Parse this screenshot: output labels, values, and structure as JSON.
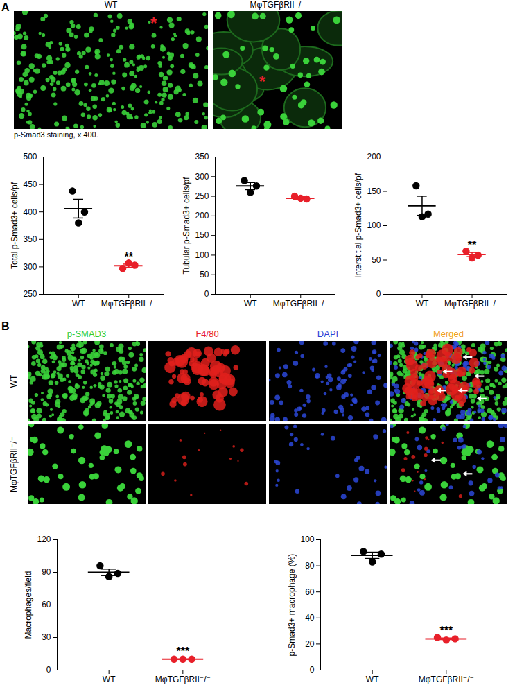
{
  "figure": {
    "panel_A": {
      "label": "A",
      "images": [
        "WT",
        "MφTGFβRII⁻/⁻"
      ],
      "marker": "*",
      "color": "#e8202a",
      "caption": "p-Smad3 staining, x 400."
    },
    "panel_B": {
      "label": "B",
      "rows": [
        "WT",
        "MφTGFβRII⁻/⁻"
      ],
      "channels": [
        {
          "name": "p-SMAD3",
          "color": "#33cc33"
        },
        {
          "name": "F4/80",
          "color": "#e8202a"
        },
        {
          "name": "DAPI",
          "color": "#2b3fd6"
        },
        {
          "name": "Merged",
          "color": "#f0a020"
        }
      ]
    }
  },
  "chart_data": [
    {
      "type": "scatter",
      "ylabel": "Total p-Smad3+ cells/pf",
      "categories": [
        "WT",
        "MφTGFβRII⁻/⁻"
      ],
      "colors": [
        "#000000",
        "#e8202a"
      ],
      "values": [
        [
          438,
          400,
          380
        ],
        [
          297,
          303,
          307
        ]
      ],
      "means": [
        406,
        302
      ],
      "sem": [
        17,
        3
      ],
      "annotations": [
        {
          "category": "MφTGFβRII⁻/⁻",
          "text": "**"
        }
      ],
      "ylim": [
        250,
        500
      ],
      "yticks": [
        250,
        300,
        350,
        400,
        450,
        500
      ]
    },
    {
      "type": "scatter",
      "ylabel": "Tubular p-Smad3+ cells/pf",
      "categories": [
        "WT",
        "MφTGFβRII⁻/⁻"
      ],
      "colors": [
        "#000000",
        "#e8202a"
      ],
      "values": [
        [
          290,
          276,
          260
        ],
        [
          250,
          243,
          245
        ]
      ],
      "means": [
        276,
        245
      ],
      "sem": [
        9,
        3
      ],
      "annotations": [],
      "ylim": [
        0,
        350
      ],
      "yticks": [
        0,
        50,
        100,
        150,
        200,
        250,
        300,
        350
      ]
    },
    {
      "type": "scatter",
      "ylabel": "Interstitial p-Smad3+ cells/pf",
      "categories": [
        "WT",
        "MφTGFβRII⁻/⁻"
      ],
      "colors": [
        "#000000",
        "#e8202a"
      ],
      "values": [
        [
          158,
          117,
          113
        ],
        [
          63,
          57,
          53
        ]
      ],
      "means": [
        129,
        58
      ],
      "sem": [
        14,
        3
      ],
      "annotations": [
        {
          "category": "MφTGFβRII⁻/⁻",
          "text": "**"
        }
      ],
      "ylim": [
        0,
        200
      ],
      "yticks": [
        0,
        50,
        100,
        150,
        200
      ]
    },
    {
      "type": "scatter",
      "ylabel": "Macrophages/field",
      "categories": [
        "WT",
        "MφTGFβRII⁻/⁻"
      ],
      "colors": [
        "#000000",
        "#e8202a"
      ],
      "values": [
        [
          96,
          89,
          86
        ],
        [
          10,
          10,
          10
        ]
      ],
      "means": [
        90,
        10
      ],
      "sem": [
        3,
        0.3
      ],
      "annotations": [
        {
          "category": "MφTGFβRII⁻/⁻",
          "text": "***"
        }
      ],
      "ylim": [
        0,
        120
      ],
      "yticks": [
        0,
        30,
        60,
        90,
        120
      ]
    },
    {
      "type": "scatter",
      "ylabel": "p-Smad3+ macrophage (%)",
      "categories": [
        "WT",
        "MφTGFβRII⁻/⁻"
      ],
      "colors": [
        "#000000",
        "#e8202a"
      ],
      "values": [
        [
          91,
          89,
          83
        ],
        [
          25,
          24,
          23
        ]
      ],
      "means": [
        88,
        24
      ],
      "sem": [
        2.4,
        0.6
      ],
      "annotations": [
        {
          "category": "MφTGFβRII⁻/⁻",
          "text": "***"
        }
      ],
      "ylim": [
        0,
        100
      ],
      "yticks": [
        0,
        20,
        40,
        60,
        80,
        100
      ]
    }
  ]
}
